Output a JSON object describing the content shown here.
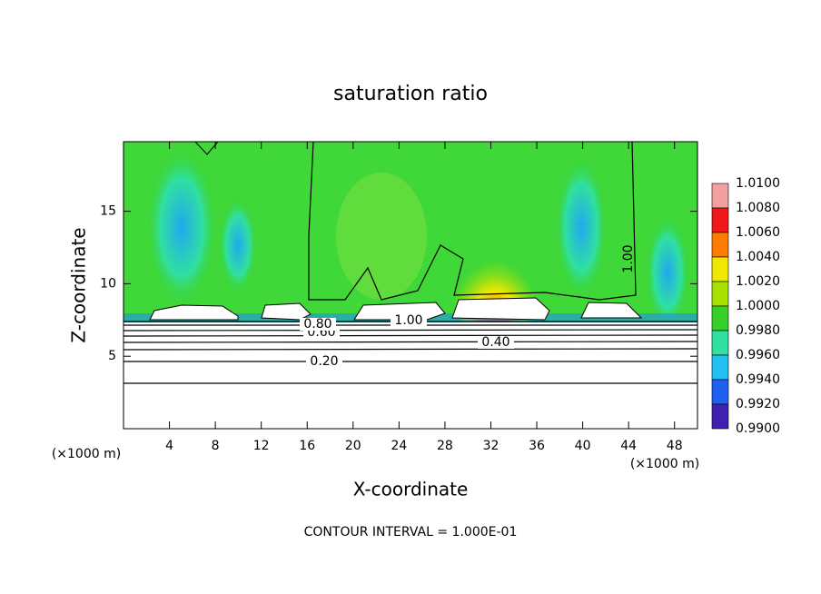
{
  "chart_data": {
    "type": "contour",
    "title": "saturation ratio",
    "x_label": "X-coordinate",
    "y_label": "Z-coordinate",
    "x_unit": "(×1000 m)",
    "footer": "CONTOUR INTERVAL = 1.000E-01",
    "xlim": [
      0,
      50
    ],
    "ylim": [
      0,
      19.8
    ],
    "xticks": [
      4,
      8,
      12,
      16,
      20,
      24,
      28,
      32,
      36,
      40,
      44,
      48
    ],
    "yticks": [
      5,
      10,
      15
    ],
    "colorbar": {
      "levels": [
        {
          "value": 1.01,
          "label": "1.0100"
        },
        {
          "value": 1.008,
          "label": "1.0080"
        },
        {
          "value": 1.006,
          "label": "1.0060"
        },
        {
          "value": 1.004,
          "label": "1.0040"
        },
        {
          "value": 1.002,
          "label": "1.0020"
        },
        {
          "value": 1.0,
          "label": "1.0000"
        },
        {
          "value": 0.998,
          "label": "0.9980"
        },
        {
          "value": 0.996,
          "label": "0.9960"
        },
        {
          "value": 0.994,
          "label": "0.9940"
        },
        {
          "value": 0.992,
          "label": "0.9920"
        },
        {
          "value": 0.99,
          "label": "0.9900"
        }
      ],
      "colors": [
        "#f4a0a0",
        "#f01818",
        "#ff7a00",
        "#f0e800",
        "#a8e000",
        "#38d028",
        "#30e0a0",
        "#20c0f0",
        "#2060f0",
        "#4020b0"
      ]
    },
    "contour_labels": [
      {
        "value": 0.2,
        "label": "0.20"
      },
      {
        "value": 0.4,
        "label": "0.40"
      },
      {
        "value": 0.6,
        "label": "0.60"
      },
      {
        "value": 0.8,
        "label": "0.80"
      },
      {
        "value": 1.0,
        "label": "1.00"
      },
      {
        "value": 1.0,
        "label": "1.00"
      }
    ]
  }
}
